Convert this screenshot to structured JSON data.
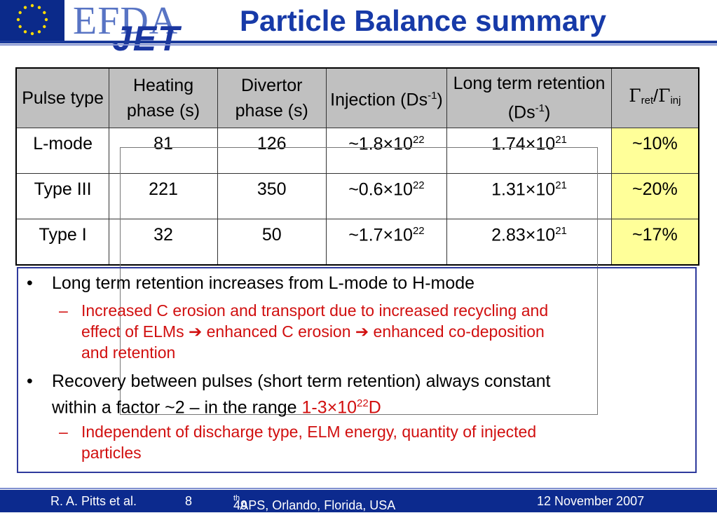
{
  "header": {
    "logo_text_efda": "EFDA",
    "logo_text_jet": "JET",
    "title": "Particle Balance summary"
  },
  "table": {
    "headers": {
      "c1": "Pulse type",
      "c2": "Heating phase (s)",
      "c3": "Divertor phase (s)",
      "c4_main": "Injection (Ds",
      "c4_sup": "-1",
      "c4_end": ")",
      "c5_main": "Long term retention (Ds",
      "c5_sup": "-1",
      "c5_end": ")",
      "c6_gamma1": "Γ",
      "c6_sub1": "ret",
      "c6_slash": "/",
      "c6_gamma2": "Γ",
      "c6_sub2": "inj"
    },
    "rows": [
      {
        "type": "L-mode",
        "heating": "81",
        "divertor": "126",
        "inj_mant": "~1.8×10",
        "inj_exp": "22",
        "ret_mant": "1.74×10",
        "ret_exp": "21",
        "ratio": "~10%"
      },
      {
        "type": "Type III",
        "heating": "221",
        "divertor": "350",
        "inj_mant": "~0.6×10",
        "inj_exp": "22",
        "ret_mant": "1.31×10",
        "ret_exp": "21",
        "ratio": "~20%"
      },
      {
        "type": "Type I",
        "heating": "32",
        "divertor": "50",
        "inj_mant": "~1.7×10",
        "inj_exp": "22",
        "ret_mant": "2.83×10",
        "ret_exp": "21",
        "ratio": "~17%"
      }
    ]
  },
  "bullets": {
    "b1": "Long term retention increases from L-mode to H-mode",
    "b1_sub_line1": "Increased C erosion and transport due to increased recycling and",
    "b1_sub_line2": "effect of ELMs ➔ enhanced C erosion ➔ enhanced co-deposition",
    "b1_sub_line3": "and retention",
    "b2_line1": "Recovery between pulses (short term retention) always constant",
    "b2_line2_pre": "within a factor ~2 – in the range ",
    "b2_line2_hl": "1-3×10",
    "b2_line2_sup": "22",
    "b2_line2_end": "D",
    "b2_sub_line1": "Independent of discharge type, ELM energy, quantity of injected",
    "b2_sub_line2": "particles",
    "bullet_char": "•",
    "dash_char": "–"
  },
  "footer": {
    "author": "R. A. Pitts et al.",
    "page": "8",
    "conf_pre": "49",
    "conf_sup": "th",
    "conf_post": " APS, Orlando, Florida, USA",
    "date": "12 November 2007"
  },
  "colors": {
    "title_blue": "#173aa8",
    "green": "#138f13",
    "red": "#d10f0f",
    "highlight_yellow": "#ffff99",
    "header_gray": "#c0c0c0",
    "footer_blue": "#0c2a8e"
  }
}
